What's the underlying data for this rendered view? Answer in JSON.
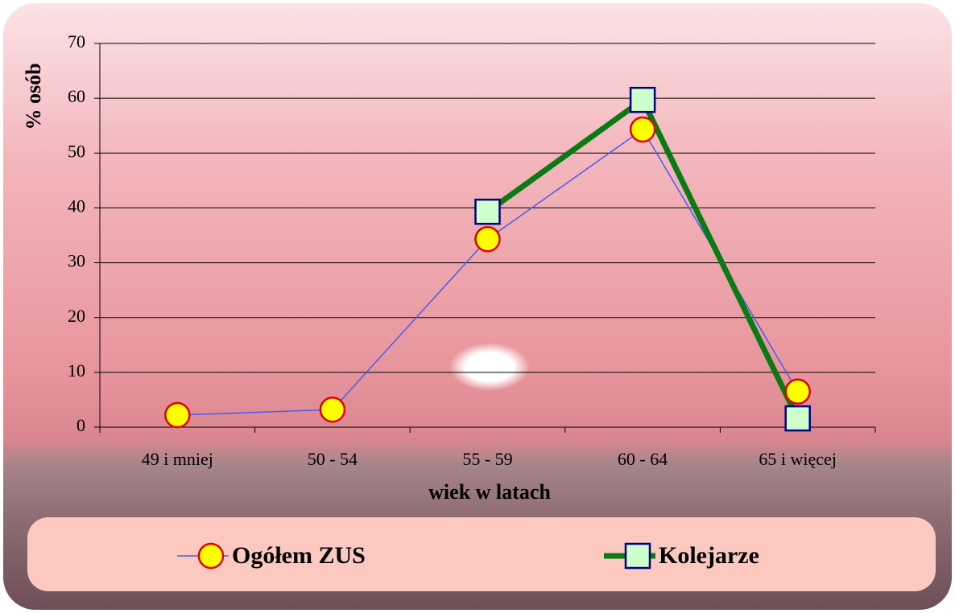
{
  "chart_data": {
    "type": "line",
    "y_label": "% osób",
    "x_label": "wiek w latach",
    "categories": [
      "49 i mniej",
      "50 - 54",
      "55 - 59",
      "60 - 64",
      "65  i więcej"
    ],
    "series": [
      {
        "name": "Ogółem ZUS",
        "color": "#4a5cf0",
        "marker_fill": "#ffff00",
        "marker_stroke": "#e00000",
        "marker": "circle",
        "values": [
          2.2,
          3.2,
          34.3,
          54.3,
          6.5
        ]
      },
      {
        "name": "Kolejarze",
        "color": "#0a7a14",
        "marker_fill": "#ccffcc",
        "marker_stroke": "#000080",
        "marker": "square",
        "values": [
          null,
          null,
          39.3,
          59.7,
          1.6
        ]
      }
    ],
    "ylim": [
      0,
      70
    ],
    "yticks": [
      0,
      10,
      20,
      30,
      40,
      50,
      60,
      70
    ],
    "grid": true,
    "legend": "bottom"
  }
}
